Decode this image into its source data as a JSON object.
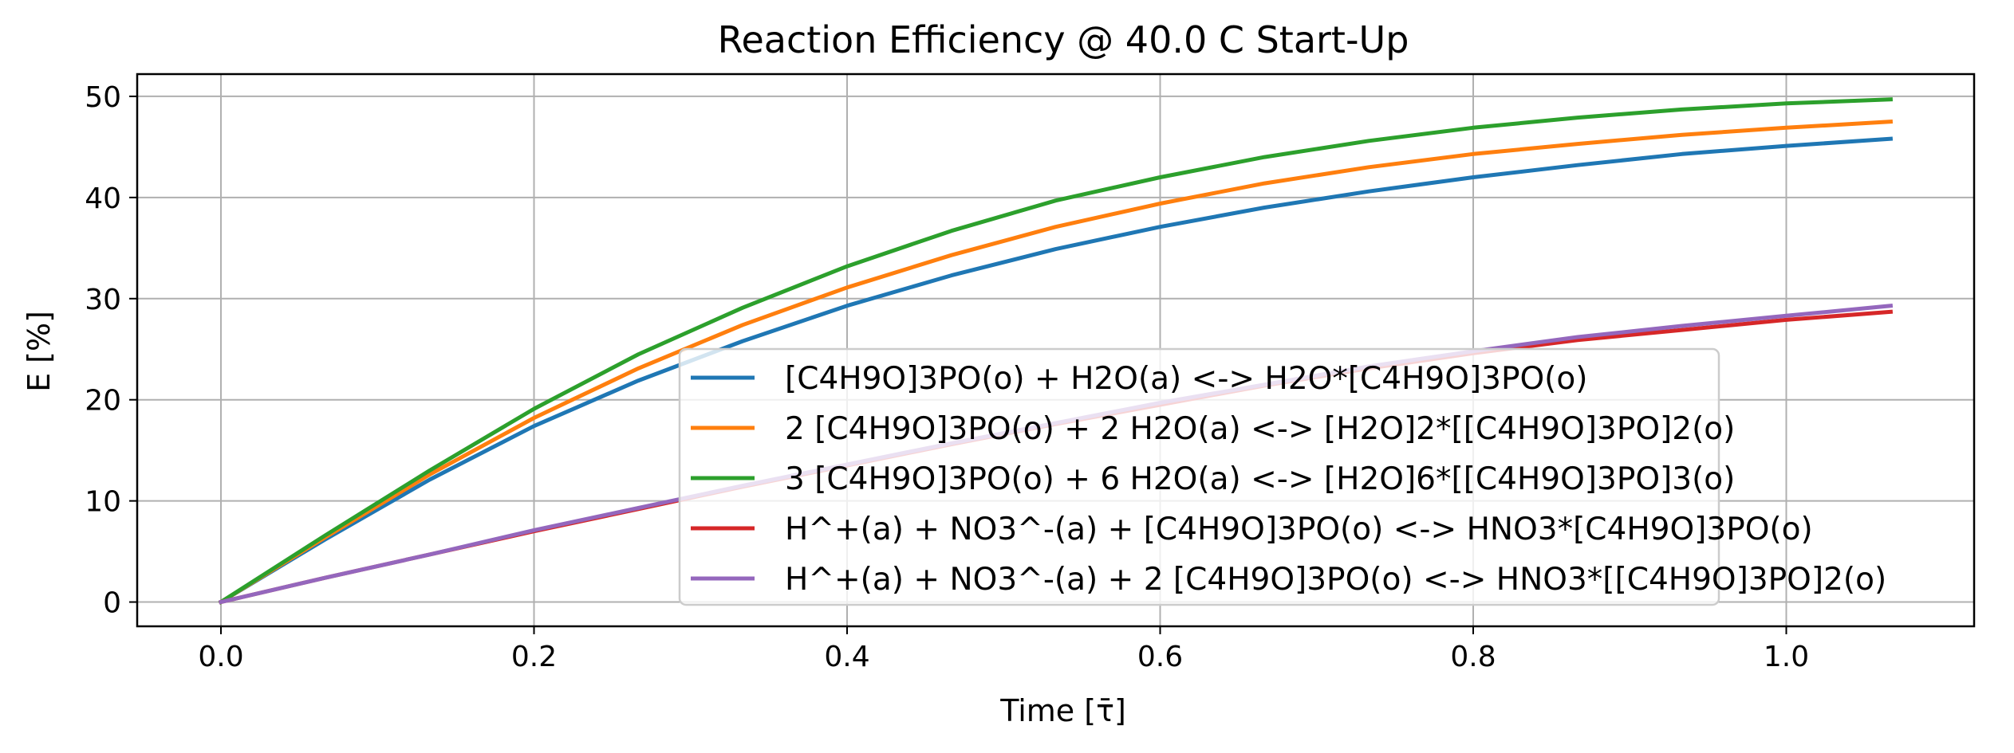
{
  "chart_data": {
    "type": "line",
    "title": "Reaction Efficiency @ 40.0 C Start-Up",
    "xlabel": "Time [τ̄]",
    "ylabel": "E [%]",
    "xlim": [
      -0.0535,
      1.12
    ],
    "ylim": [
      -2.4,
      52.2
    ],
    "xticks": [
      0.0,
      0.2,
      0.4,
      0.6,
      0.8,
      1.0
    ],
    "xtick_labels": [
      "0.0",
      "0.2",
      "0.4",
      "0.6",
      "0.8",
      "1.0"
    ],
    "yticks": [
      0,
      10,
      20,
      30,
      40,
      50
    ],
    "ytick_labels": [
      "0",
      "10",
      "20",
      "30",
      "40",
      "50"
    ],
    "grid": true,
    "legend_position": "lower-right",
    "x": [
      0.0,
      0.0667,
      0.1333,
      0.2,
      0.2667,
      0.3333,
      0.4,
      0.4667,
      0.5333,
      0.6,
      0.6667,
      0.7333,
      0.8,
      0.8667,
      0.9333,
      1.0,
      1.0667
    ],
    "series": [
      {
        "name": "[C4H9O]3PO(o) + H2O(a) <-> H2O*[C4H9O]3PO(o)",
        "color": "#1f77b4",
        "values": [
          0.0,
          6.2,
          12.1,
          17.4,
          21.9,
          25.8,
          29.3,
          32.3,
          34.9,
          37.1,
          39.0,
          40.6,
          42.0,
          43.2,
          44.3,
          45.1,
          45.8
        ]
      },
      {
        "name": "2 [C4H9O]3PO(o) + 2 H2O(a) <-> [H2O]2*[[C4H9O]3PO]2(o)",
        "color": "#ff7f0e",
        "values": [
          0.0,
          6.4,
          12.6,
          18.2,
          23.1,
          27.4,
          31.1,
          34.3,
          37.1,
          39.4,
          41.4,
          43.0,
          44.3,
          45.3,
          46.2,
          46.9,
          47.5
        ]
      },
      {
        "name": "3 [C4H9O]3PO(o) + 6 H2O(a) <-> [H2O]6*[[C4H9O]3PO]3(o)",
        "color": "#2ca02c",
        "values": [
          0.0,
          6.6,
          13.0,
          19.1,
          24.5,
          29.1,
          33.2,
          36.7,
          39.7,
          42.0,
          44.0,
          45.6,
          46.9,
          47.9,
          48.7,
          49.3,
          49.7
        ]
      },
      {
        "name": "H^+(a) + NO3^-(a) + [C4H9O]3PO(o) <-> HNO3*[C4H9O]3PO(o)",
        "color": "#d62728",
        "values": [
          0.0,
          2.4,
          4.7,
          7.0,
          9.2,
          11.4,
          13.5,
          15.6,
          17.6,
          19.5,
          21.4,
          23.1,
          24.6,
          25.9,
          26.9,
          27.9,
          28.7
        ]
      },
      {
        "name": "H^+(a) + NO3^-(a) + 2 [C4H9O]3PO(o) <-> HNO3*[[C4H9O]3PO]2(o)",
        "color": "#9467bd",
        "values": [
          0.0,
          2.4,
          4.7,
          7.1,
          9.3,
          11.5,
          13.6,
          15.7,
          17.7,
          19.7,
          21.5,
          23.3,
          24.8,
          26.2,
          27.3,
          28.3,
          29.3
        ]
      }
    ]
  }
}
